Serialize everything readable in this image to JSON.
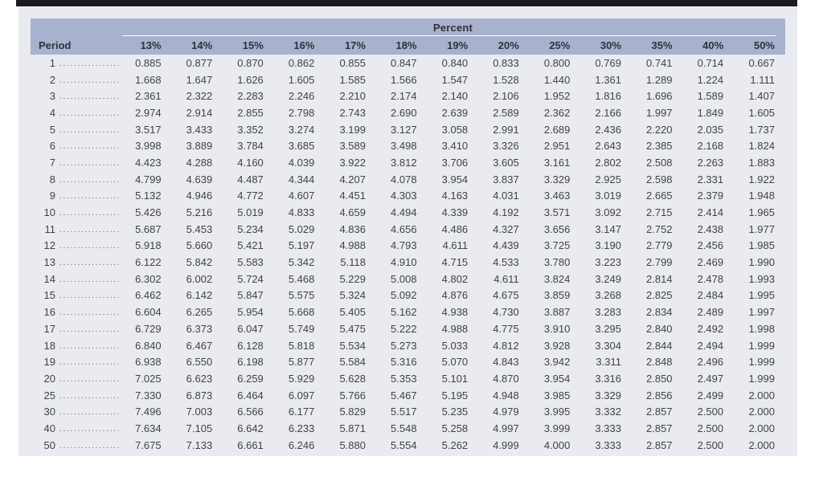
{
  "colors": {
    "top_bar": "#1b1b1d",
    "panel_bg": "#e9ebf1",
    "header_bg": "#a8b2cf"
  },
  "table": {
    "group_header": "Percent",
    "period_header": "Period",
    "leader_dots": ".................",
    "rate_headers": [
      "13%",
      "14%",
      "15%",
      "16%",
      "17%",
      "18%",
      "19%",
      "20%",
      "25%",
      "30%",
      "35%",
      "40%",
      "50%"
    ],
    "rows": [
      {
        "period": "1",
        "values": [
          "0.885",
          "0.877",
          "0.870",
          "0.862",
          "0.855",
          "0.847",
          "0.840",
          "0.833",
          "0.800",
          "0.769",
          "0.741",
          "0.714",
          "0.667"
        ]
      },
      {
        "period": "2",
        "values": [
          "1.668",
          "1.647",
          "1.626",
          "1.605",
          "1.585",
          "1.566",
          "1.547",
          "1.528",
          "1.440",
          "1.361",
          "1.289",
          "1.224",
          "1.111"
        ]
      },
      {
        "period": "3",
        "values": [
          "2.361",
          "2.322",
          "2.283",
          "2.246",
          "2.210",
          "2.174",
          "2.140",
          "2.106",
          "1.952",
          "1.816",
          "1.696",
          "1.589",
          "1.407"
        ]
      },
      {
        "period": "4",
        "values": [
          "2.974",
          "2.914",
          "2.855",
          "2.798",
          "2.743",
          "2.690",
          "2.639",
          "2.589",
          "2.362",
          "2.166",
          "1.997",
          "1.849",
          "1.605"
        ]
      },
      {
        "period": "5",
        "values": [
          "3.517",
          "3.433",
          "3.352",
          "3.274",
          "3.199",
          "3.127",
          "3.058",
          "2.991",
          "2.689",
          "2.436",
          "2.220",
          "2.035",
          "1.737"
        ]
      },
      {
        "period": "6",
        "values": [
          "3.998",
          "3.889",
          "3.784",
          "3.685",
          "3.589",
          "3.498",
          "3.410",
          "3.326",
          "2.951",
          "2.643",
          "2.385",
          "2.168",
          "1.824"
        ]
      },
      {
        "period": "7",
        "values": [
          "4.423",
          "4.288",
          "4.160",
          "4.039",
          "3.922",
          "3.812",
          "3.706",
          "3.605",
          "3.161",
          "2.802",
          "2.508",
          "2.263",
          "1.883"
        ]
      },
      {
        "period": "8",
        "values": [
          "4.799",
          "4.639",
          "4.487",
          "4.344",
          "4.207",
          "4.078",
          "3.954",
          "3.837",
          "3.329",
          "2.925",
          "2.598",
          "2.331",
          "1.922"
        ]
      },
      {
        "period": "9",
        "values": [
          "5.132",
          "4.946",
          "4.772",
          "4.607",
          "4.451",
          "4.303",
          "4.163",
          "4.031",
          "3.463",
          "3.019",
          "2.665",
          "2.379",
          "1.948"
        ]
      },
      {
        "period": "10",
        "values": [
          "5.426",
          "5.216",
          "5.019",
          "4.833",
          "4.659",
          "4.494",
          "4.339",
          "4.192",
          "3.571",
          "3.092",
          "2.715",
          "2.414",
          "1.965"
        ]
      },
      {
        "period": "11",
        "values": [
          "5.687",
          "5.453",
          "5.234",
          "5.029",
          "4.836",
          "4.656",
          "4.486",
          "4.327",
          "3.656",
          "3.147",
          "2.752",
          "2.438",
          "1.977"
        ]
      },
      {
        "period": "12",
        "values": [
          "5.918",
          "5.660",
          "5.421",
          "5.197",
          "4.988",
          "4.793",
          "4.611",
          "4.439",
          "3.725",
          "3.190",
          "2.779",
          "2.456",
          "1.985"
        ]
      },
      {
        "period": "13",
        "values": [
          "6.122",
          "5.842",
          "5.583",
          "5.342",
          "5.118",
          "4.910",
          "4.715",
          "4.533",
          "3.780",
          "3.223",
          "2.799",
          "2.469",
          "1.990"
        ]
      },
      {
        "period": "14",
        "values": [
          "6.302",
          "6.002",
          "5.724",
          "5.468",
          "5.229",
          "5.008",
          "4.802",
          "4.611",
          "3.824",
          "3.249",
          "2.814",
          "2.478",
          "1.993"
        ]
      },
      {
        "period": "15",
        "values": [
          "6.462",
          "6.142",
          "5.847",
          "5.575",
          "5.324",
          "5.092",
          "4.876",
          "4.675",
          "3.859",
          "3.268",
          "2.825",
          "2.484",
          "1.995"
        ]
      },
      {
        "period": "16",
        "values": [
          "6.604",
          "6.265",
          "5.954",
          "5.668",
          "5.405",
          "5.162",
          "4.938",
          "4.730",
          "3.887",
          "3.283",
          "2.834",
          "2.489",
          "1.997"
        ]
      },
      {
        "period": "17",
        "values": [
          "6.729",
          "6.373",
          "6.047",
          "5.749",
          "5.475",
          "5.222",
          "4.988",
          "4.775",
          "3.910",
          "3.295",
          "2.840",
          "2.492",
          "1.998"
        ]
      },
      {
        "period": "18",
        "values": [
          "6.840",
          "6.467",
          "6.128",
          "5.818",
          "5.534",
          "5.273",
          "5.033",
          "4.812",
          "3.928",
          "3.304",
          "2.844",
          "2.494",
          "1.999"
        ]
      },
      {
        "period": "19",
        "values": [
          "6.938",
          "6.550",
          "6.198",
          "5.877",
          "5.584",
          "5.316",
          "5.070",
          "4.843",
          "3.942",
          "3.311",
          "2.848",
          "2.496",
          "1.999"
        ]
      },
      {
        "period": "20",
        "values": [
          "7.025",
          "6.623",
          "6.259",
          "5.929",
          "5.628",
          "5.353",
          "5.101",
          "4.870",
          "3.954",
          "3.316",
          "2.850",
          "2.497",
          "1.999"
        ]
      },
      {
        "period": "25",
        "values": [
          "7.330",
          "6.873",
          "6.464",
          "6.097",
          "5.766",
          "5.467",
          "5.195",
          "4.948",
          "3.985",
          "3.329",
          "2.856",
          "2.499",
          "2.000"
        ]
      },
      {
        "period": "30",
        "values": [
          "7.496",
          "7.003",
          "6.566",
          "6.177",
          "5.829",
          "5.517",
          "5.235",
          "4.979",
          "3.995",
          "3.332",
          "2.857",
          "2.500",
          "2.000"
        ]
      },
      {
        "period": "40",
        "values": [
          "7.634",
          "7.105",
          "6.642",
          "6.233",
          "5.871",
          "5.548",
          "5.258",
          "4.997",
          "3.999",
          "3.333",
          "2.857",
          "2.500",
          "2.000"
        ]
      },
      {
        "period": "50",
        "values": [
          "7.675",
          "7.133",
          "6.661",
          "6.246",
          "5.880",
          "5.554",
          "5.262",
          "4.999",
          "4.000",
          "3.333",
          "2.857",
          "2.500",
          "2.000"
        ]
      }
    ]
  }
}
